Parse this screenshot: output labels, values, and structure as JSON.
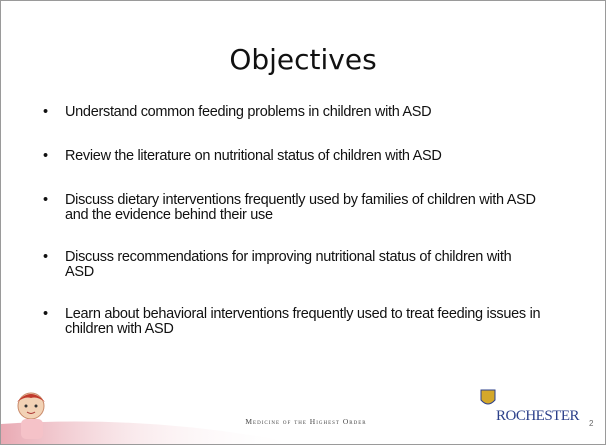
{
  "slide": {
    "title": "Objectives",
    "bullets": [
      "Understand common feeding problems in children with ASD",
      "Review the literature on nutritional status of children with ASD",
      "Discuss dietary interventions frequently used by families of children with ASD and the evidence behind their use",
      "Discuss recommendations for improving nutritional status of children with ASD",
      "Learn about behavioral interventions frequently used to treat feeding issues in children with ASD"
    ],
    "footer": {
      "tagline": "Medicine of the Highest Order",
      "logo": "ROCHESTER",
      "page_number": "2"
    }
  }
}
